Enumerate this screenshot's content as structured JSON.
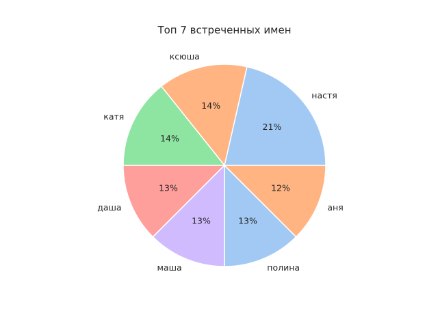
{
  "chart_data": {
    "type": "pie",
    "title": "Топ 7 встреченных имен",
    "categories": [
      "настя",
      "ксюша",
      "катя",
      "даша",
      "маша",
      "полина",
      "аня"
    ],
    "values": [
      21.43,
      14.29,
      14.29,
      12.5,
      12.5,
      12.5,
      12.5
    ],
    "percent_labels": [
      "21%",
      "14%",
      "14%",
      "13%",
      "13%",
      "13%",
      "12%"
    ],
    "colors": [
      "#a1c9f4",
      "#ffb482",
      "#8de5a1",
      "#ff9f9b",
      "#d0bbff",
      "#a1c9f4",
      "#ffb482"
    ],
    "start_angle": 0,
    "direction": "counterclockwise",
    "legend": "none"
  }
}
